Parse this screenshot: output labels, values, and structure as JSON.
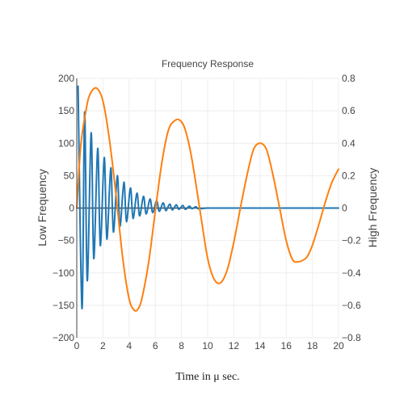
{
  "chart_data": {
    "type": "line",
    "title": "Frequency Response",
    "xlabel": "Time in μ sec.",
    "xlim": [
      0,
      20
    ],
    "x_ticks": [
      "0",
      "2",
      "4",
      "6",
      "8",
      "10",
      "12",
      "14",
      "16",
      "18",
      "20"
    ],
    "y_left": {
      "label": "Low Frequency",
      "range": [
        -200,
        200
      ],
      "ticks": [
        "200",
        "150",
        "100",
        "50",
        "0",
        "−50",
        "−100",
        "−150",
        "−200"
      ]
    },
    "y_right": {
      "label": "High Frequency",
      "range": [
        -0.8,
        0.8
      ],
      "ticks": [
        "0.8",
        "0.6",
        "0.4",
        "0.2",
        "0",
        "−0.2",
        "−0.4",
        "−0.6",
        "−0.8"
      ]
    },
    "grid": true,
    "series": [
      {
        "axis": "left",
        "color": "#1f77b4",
        "x": [
          0.1,
          0.4,
          0.6,
          0.8,
          1.1,
          1.3,
          1.6,
          1.8,
          2.1,
          2.3,
          2.6,
          2.8,
          3.1,
          3.3,
          3.6,
          3.8,
          4.1,
          4.3,
          4.6,
          4.8,
          5.1,
          5.3,
          5.6,
          5.8,
          6.1,
          6.3,
          6.6,
          6.8,
          7.1,
          7.3,
          7.6,
          7.8,
          8.1,
          8.3,
          8.6,
          8.8,
          9.1,
          9.3,
          10,
          12,
          14,
          16,
          18,
          20
        ],
        "values": [
          188,
          -155,
          148,
          -112,
          116,
          -78,
          92,
          -58,
          78,
          -48,
          62,
          -37,
          50,
          -28,
          40,
          -21,
          31,
          -16,
          23,
          -12,
          18,
          -9,
          14,
          -7,
          11,
          -5,
          8,
          -4,
          6,
          -3,
          5,
          -2,
          4,
          -2,
          3,
          -1,
          2,
          -1,
          0,
          0,
          0,
          0,
          0,
          0
        ]
      },
      {
        "axis": "right",
        "color": "#ff7f0e",
        "x": [
          0,
          0.3,
          0.7,
          1,
          1.5,
          2,
          2.5,
          3,
          3.5,
          4,
          4.4,
          4.7,
          5,
          5.5,
          6,
          6.5,
          7,
          7.5,
          7.9,
          8.3,
          8.8,
          9.5,
          10,
          10.5,
          11,
          11.5,
          12,
          12.5,
          13,
          13.5,
          14,
          14.5,
          15,
          15.5,
          16,
          16.5,
          17,
          17.3,
          17.6,
          18,
          18.5,
          19,
          19.5,
          20
        ],
        "values": [
          0,
          0.38,
          0.6,
          0.7,
          0.74,
          0.66,
          0.42,
          0.08,
          -0.3,
          -0.56,
          -0.63,
          -0.62,
          -0.55,
          -0.33,
          -0.02,
          0.28,
          0.48,
          0.54,
          0.54,
          0.48,
          0.3,
          -0.06,
          -0.31,
          -0.44,
          -0.46,
          -0.38,
          -0.21,
          0.0,
          0.2,
          0.36,
          0.4,
          0.36,
          0.2,
          0.0,
          -0.2,
          -0.32,
          -0.33,
          -0.32,
          -0.3,
          -0.23,
          -0.1,
          0.04,
          0.16,
          0.24
        ]
      }
    ]
  }
}
